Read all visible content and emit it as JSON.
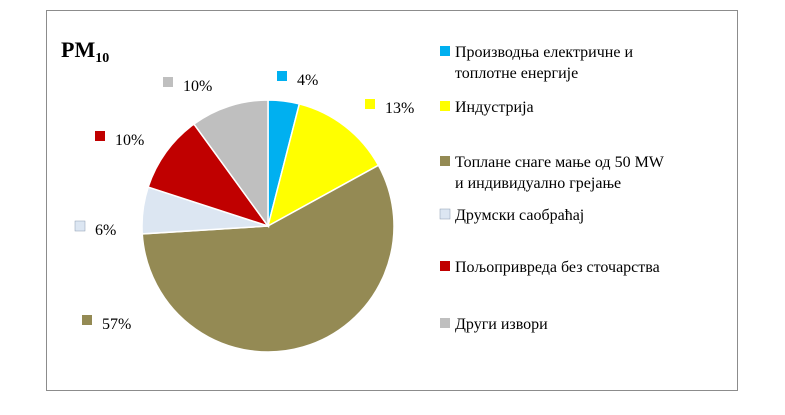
{
  "chart_data": {
    "type": "pie",
    "title": "PM",
    "title_subscript": "10",
    "labels": [
      [
        "Производња електричне и",
        "топлотне енергије"
      ],
      [
        "Индустрија"
      ],
      [
        "Топлане снаге мање од 50 MW",
        "и индивидуално грејање"
      ],
      [
        "Друмски саобраћај"
      ],
      [
        "Пољопривреда без сточарства"
      ],
      [
        "Други извори"
      ]
    ],
    "values": [
      4,
      13,
      57,
      6,
      10,
      10
    ],
    "value_labels": [
      "4%",
      "13%",
      "57%",
      "6%",
      "10%",
      "10%"
    ],
    "colors": [
      "#00b0f0",
      "#ffff00",
      "#948a54",
      "#dce6f2",
      "#c00000",
      "#bfbfbf"
    ],
    "legend_position": "right"
  }
}
